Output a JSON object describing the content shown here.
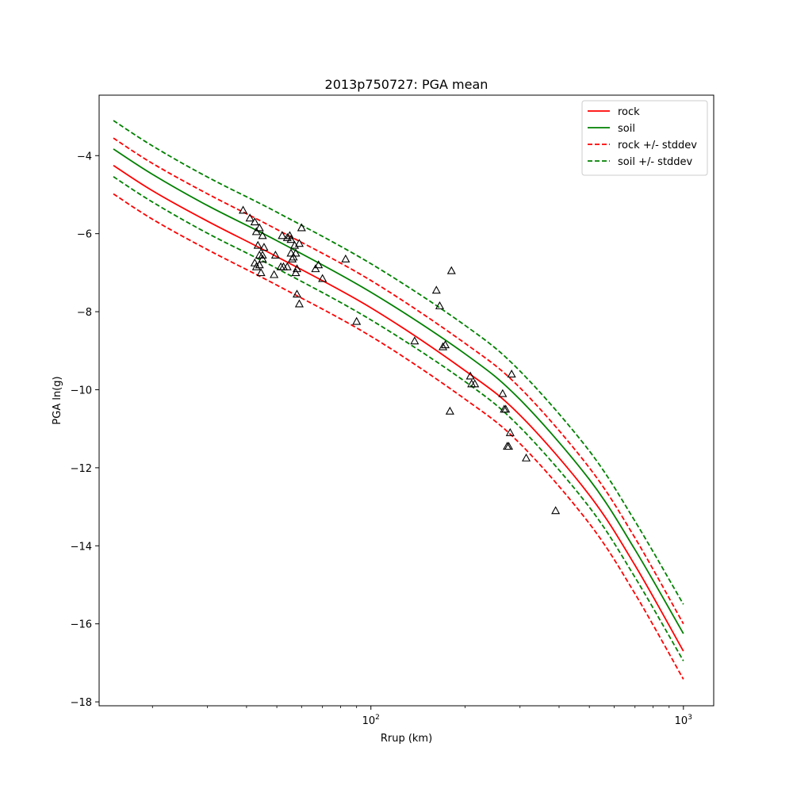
{
  "chart_data": {
    "type": "scatter",
    "title": "2013p750727: PGA mean",
    "xlabel": "Rrup (km)",
    "ylabel": "PGA ln(g)",
    "xscale": "log",
    "xlim": [
      13.5,
      1250
    ],
    "ylim": [
      -18.1,
      -2.45
    ],
    "x_major_ticks": [
      {
        "value": 100,
        "base": "10",
        "exp": "2"
      },
      {
        "value": 1000,
        "base": "10",
        "exp": "3"
      }
    ],
    "x_minor_ticks": [
      20,
      30,
      40,
      50,
      60,
      70,
      80,
      90,
      200,
      300,
      400,
      500,
      600,
      700,
      800,
      900
    ],
    "y_ticks": [
      -18,
      -16,
      -14,
      -12,
      -10,
      -8,
      -6,
      -4
    ],
    "y_tick_labels": [
      "−18",
      "−16",
      "−14",
      "−12",
      "−10",
      "−8",
      "−6",
      "−4"
    ],
    "grid": false,
    "legend_position": "top-right",
    "legend": [
      {
        "label": "rock",
        "color": "#ff0000",
        "style": "solid"
      },
      {
        "label": "soil",
        "color": "#008000",
        "style": "solid"
      },
      {
        "label": "rock +/- stddev",
        "color": "#ff0000",
        "style": "dashed"
      },
      {
        "label": "soil +/- stddev",
        "color": "#008000",
        "style": "dashed"
      }
    ],
    "series": [
      {
        "name": "rock",
        "color": "#ff0000",
        "style": "solid",
        "x": [
          15,
          20,
          30,
          50,
          100,
          200,
          300,
          500,
          700,
          1000
        ],
        "y": [
          -4.25,
          -4.9,
          -5.68,
          -6.59,
          -7.9,
          -9.51,
          -10.65,
          -12.7,
          -14.5,
          -16.7
        ]
      },
      {
        "name": "soil",
        "color": "#008000",
        "style": "solid",
        "x": [
          15,
          20,
          30,
          50,
          100,
          200,
          300,
          500,
          700,
          1000
        ],
        "y": [
          -3.83,
          -4.48,
          -5.28,
          -6.18,
          -7.5,
          -9.08,
          -10.25,
          -12.3,
          -14.1,
          -16.25
        ]
      },
      {
        "name": "rock +/- stddev",
        "color": "#ff0000",
        "style": "dashed",
        "x": [
          15,
          20,
          30,
          50,
          100,
          200,
          300,
          500,
          700,
          1000
        ],
        "y": [
          -3.55,
          -4.2,
          -4.98,
          -5.89,
          -7.2,
          -8.81,
          -9.95,
          -12.0,
          -13.8,
          -16.0
        ]
      },
      {
        "name": "rock +/- stddev",
        "color": "#ff0000",
        "style": "dashed",
        "x": [
          15,
          20,
          30,
          50,
          100,
          200,
          300,
          500,
          700,
          1000
        ],
        "y": [
          -4.98,
          -5.63,
          -6.41,
          -7.32,
          -8.63,
          -10.24,
          -11.38,
          -13.43,
          -15.23,
          -17.42
        ]
      },
      {
        "name": "soil +/- stddev",
        "color": "#008000",
        "style": "dashed",
        "x": [
          15,
          20,
          30,
          50,
          100,
          200,
          300,
          500,
          700,
          1000
        ],
        "y": [
          -3.1,
          -3.75,
          -4.55,
          -5.45,
          -6.77,
          -8.35,
          -9.52,
          -11.57,
          -13.37,
          -15.5
        ]
      },
      {
        "name": "soil +/- stddev",
        "color": "#008000",
        "style": "dashed",
        "x": [
          15,
          20,
          30,
          50,
          100,
          200,
          300,
          500,
          700,
          1000
        ],
        "y": [
          -4.54,
          -5.19,
          -5.99,
          -6.89,
          -8.21,
          -9.79,
          -10.96,
          -13.01,
          -14.81,
          -16.95
        ]
      }
    ],
    "observations": {
      "marker": "triangle",
      "color": "#000000",
      "x": [
        39.0,
        41.0,
        43.0,
        42.5,
        43.5,
        44.0,
        45.0,
        45.5,
        44.0,
        45.0,
        42.5,
        44.0,
        45.0,
        43.0,
        44.5,
        49.0,
        52.0,
        49.5,
        51.5,
        52.5,
        54.0,
        54.0,
        55.0,
        55.5,
        57.0,
        55.5,
        56.0,
        56.5,
        57.5,
        59.0,
        58.0,
        60.0,
        57.5,
        58.0,
        59.0,
        66.5,
        68.0,
        70.0,
        83.0,
        90.0,
        138.0,
        162.0,
        166.0,
        170.0,
        173.0,
        179.0,
        181.0,
        208.0,
        210.0,
        215.0,
        264.0,
        267.0,
        273.0,
        270.0,
        276.0,
        279.0,
        282.0,
        314.0,
        390.0
      ],
      "y": [
        -5.4,
        -5.6,
        -5.95,
        -5.7,
        -6.3,
        -5.85,
        -6.05,
        -6.35,
        -6.55,
        -6.55,
        -6.75,
        -6.8,
        -6.65,
        -6.85,
        -7.0,
        -7.05,
        -6.05,
        -6.55,
        -6.85,
        -6.85,
        -6.1,
        -6.85,
        -6.05,
        -6.15,
        -6.3,
        -6.5,
        -6.65,
        -6.6,
        -6.5,
        -6.25,
        -6.9,
        -5.85,
        -7.0,
        -7.55,
        -7.8,
        -6.9,
        -6.8,
        -7.15,
        -6.65,
        -8.25,
        -8.75,
        -7.45,
        -7.85,
        -8.9,
        -8.85,
        -10.55,
        -6.95,
        -9.65,
        -9.85,
        -9.85,
        -10.1,
        -10.5,
        -11.45,
        -10.5,
        -11.45,
        -11.1,
        -9.6,
        -11.75,
        -13.1
      ]
    }
  }
}
